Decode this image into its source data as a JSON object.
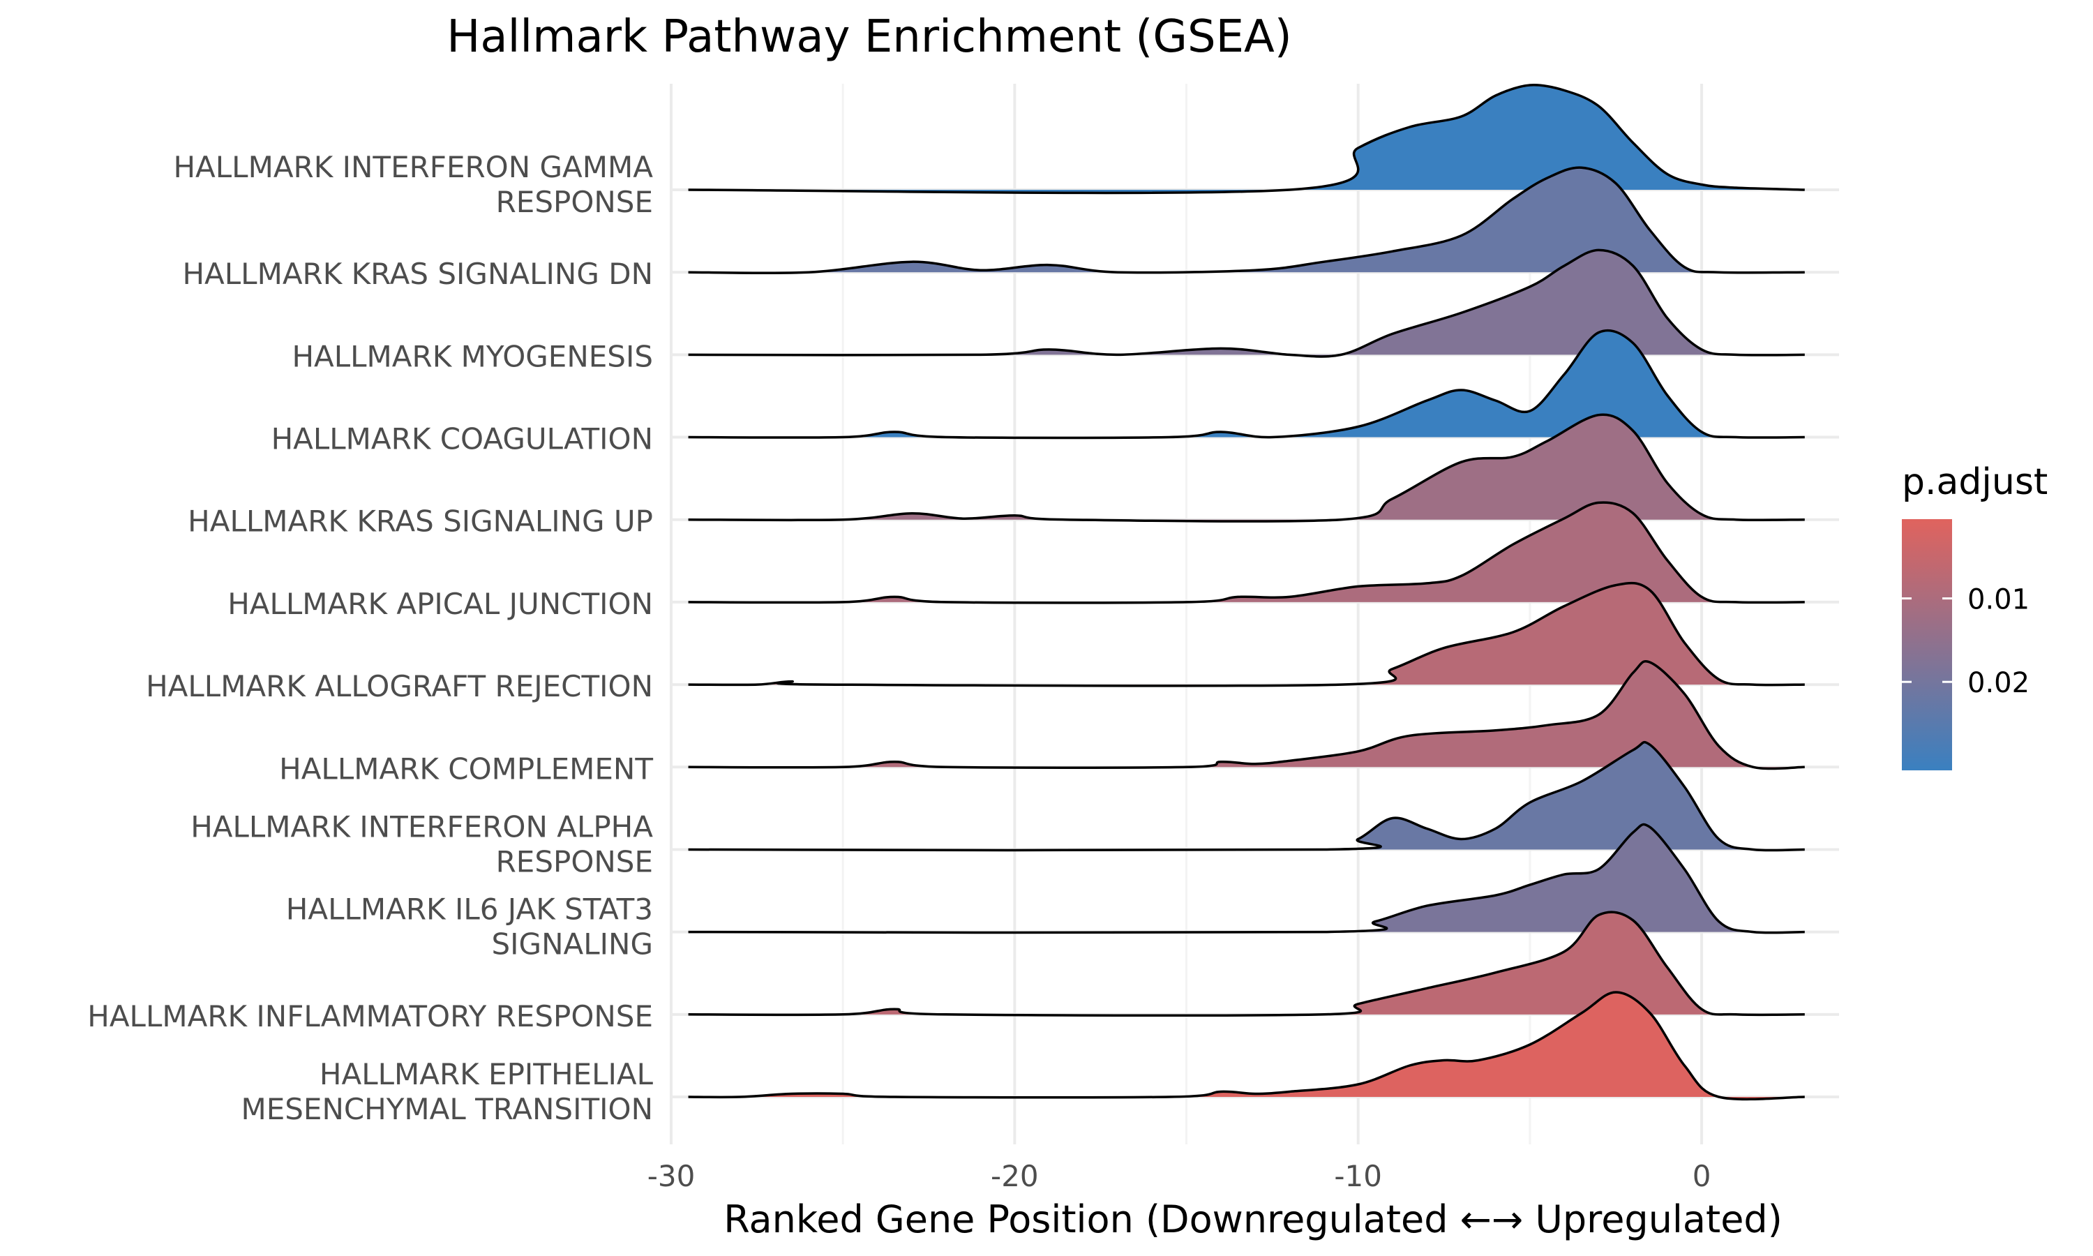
{
  "chart_data": {
    "type": "ridgeline",
    "title": "Hallmark Pathway Enrichment (GSEA)",
    "xlabel": "Ranked Gene Position (Downregulated ←→ Upregulated)",
    "ylabel": "",
    "xlim": [
      -30,
      4
    ],
    "x_ticks": [
      -30,
      -20,
      -10,
      0
    ],
    "x_tick_labels": [
      "-30",
      "-20",
      "-10",
      "0"
    ],
    "density_range": [
      -29.5,
      3
    ],
    "grid": true,
    "legend": {
      "title": "p.adjust",
      "placement": "right",
      "type": "colorbar",
      "range": [
        0.0005,
        0.0306
      ],
      "ticks": [
        0.01,
        0.02
      ],
      "tick_labels": [
        "0.01",
        "0.02"
      ],
      "low_color": "#e0635e",
      "high_color": "#3a80c0"
    },
    "colors": {
      "outline": "#000000",
      "grid": "#ebebeb",
      "tick_text": "#4d4d4d",
      "low_p": "#e0635e",
      "high_p": "#3a80c0"
    },
    "series": [
      {
        "label_lines": [
          "HALLMARK INTERFERON GAMMA",
          "RESPONSE"
        ],
        "p_adjust": 0.0306,
        "points": [
          [
            -29.5,
            0
          ],
          [
            -12,
            0
          ],
          [
            -10,
            0.4
          ],
          [
            -8.5,
            0.6
          ],
          [
            -7,
            0.7
          ],
          [
            -6,
            0.9
          ],
          [
            -5,
            1.0
          ],
          [
            -4,
            0.95
          ],
          [
            -3,
            0.8
          ],
          [
            -2,
            0.45
          ],
          [
            -1,
            0.15
          ],
          [
            0,
            0.05
          ],
          [
            1,
            0.02
          ],
          [
            3,
            0
          ]
        ]
      },
      {
        "label_lines": [
          "HALLMARK KRAS SIGNALING DN"
        ],
        "p_adjust": 0.0222,
        "points": [
          [
            -29.5,
            0
          ],
          [
            -26,
            0
          ],
          [
            -23,
            0.1
          ],
          [
            -21,
            0.02
          ],
          [
            -19,
            0.07
          ],
          [
            -17,
            0
          ],
          [
            -13,
            0.02
          ],
          [
            -11,
            0.1
          ],
          [
            -9,
            0.2
          ],
          [
            -7,
            0.35
          ],
          [
            -5.5,
            0.7
          ],
          [
            -4.5,
            0.9
          ],
          [
            -3.5,
            1.0
          ],
          [
            -2.5,
            0.85
          ],
          [
            -1.5,
            0.4
          ],
          [
            -0.5,
            0.05
          ],
          [
            0.5,
            0
          ],
          [
            3,
            0
          ]
        ]
      },
      {
        "label_lines": [
          "HALLMARK MYOGENESIS"
        ],
        "p_adjust": 0.0178,
        "points": [
          [
            -29.5,
            0
          ],
          [
            -21,
            0
          ],
          [
            -19,
            0.05
          ],
          [
            -17,
            0
          ],
          [
            -14,
            0.06
          ],
          [
            -12,
            0
          ],
          [
            -10.5,
            0
          ],
          [
            -9,
            0.2
          ],
          [
            -7,
            0.4
          ],
          [
            -5,
            0.65
          ],
          [
            -4,
            0.85
          ],
          [
            -3,
            1.0
          ],
          [
            -2,
            0.85
          ],
          [
            -1,
            0.35
          ],
          [
            0,
            0.05
          ],
          [
            1,
            0
          ],
          [
            3,
            0
          ]
        ]
      },
      {
        "label_lines": [
          "HALLMARK COAGULATION"
        ],
        "p_adjust": 0.0308,
        "points": [
          [
            -29.5,
            0
          ],
          [
            -25,
            0
          ],
          [
            -23.5,
            0.05
          ],
          [
            -22,
            0
          ],
          [
            -15.5,
            0
          ],
          [
            -14,
            0.05
          ],
          [
            -12.5,
            0
          ],
          [
            -10,
            0.1
          ],
          [
            -8,
            0.35
          ],
          [
            -7,
            0.45
          ],
          [
            -6,
            0.35
          ],
          [
            -5,
            0.25
          ],
          [
            -4,
            0.6
          ],
          [
            -3,
            1.0
          ],
          [
            -2,
            0.9
          ],
          [
            -1,
            0.4
          ],
          [
            0,
            0.05
          ],
          [
            1,
            0
          ],
          [
            3,
            0
          ]
        ]
      },
      {
        "label_lines": [
          "HALLMARK KRAS SIGNALING UP"
        ],
        "p_adjust": 0.0125,
        "points": [
          [
            -29.5,
            0
          ],
          [
            -25,
            0
          ],
          [
            -23,
            0.06
          ],
          [
            -21.5,
            0.01
          ],
          [
            -20,
            0.04
          ],
          [
            -18.5,
            0
          ],
          [
            -10.5,
            0
          ],
          [
            -9,
            0.2
          ],
          [
            -7,
            0.55
          ],
          [
            -5.5,
            0.6
          ],
          [
            -4.5,
            0.75
          ],
          [
            -3,
            1.0
          ],
          [
            -2,
            0.85
          ],
          [
            -1,
            0.35
          ],
          [
            0,
            0.05
          ],
          [
            1,
            0
          ],
          [
            3,
            0
          ]
        ]
      },
      {
        "label_lines": [
          "HALLMARK APICAL JUNCTION"
        ],
        "p_adjust": 0.01,
        "points": [
          [
            -29.5,
            0
          ],
          [
            -25,
            0
          ],
          [
            -23.5,
            0.05
          ],
          [
            -22,
            0
          ],
          [
            -15,
            0
          ],
          [
            -13.5,
            0.05
          ],
          [
            -12,
            0.05
          ],
          [
            -10,
            0.15
          ],
          [
            -8,
            0.18
          ],
          [
            -7,
            0.25
          ],
          [
            -5.5,
            0.55
          ],
          [
            -4,
            0.8
          ],
          [
            -3,
            0.95
          ],
          [
            -2,
            0.85
          ],
          [
            -1,
            0.4
          ],
          [
            0,
            0.05
          ],
          [
            1,
            0
          ],
          [
            3,
            0
          ]
        ]
      },
      {
        "label_lines": [
          "HALLMARK ALLOGRAFT REJECTION"
        ],
        "p_adjust": 0.008,
        "points": [
          [
            -29.5,
            0
          ],
          [
            -27.5,
            0
          ],
          [
            -26.5,
            0.03
          ],
          [
            -25.5,
            0
          ],
          [
            -10.5,
            0
          ],
          [
            -9,
            0.15
          ],
          [
            -7.5,
            0.35
          ],
          [
            -5.5,
            0.5
          ],
          [
            -4,
            0.75
          ],
          [
            -2.5,
            0.95
          ],
          [
            -1.5,
            0.9
          ],
          [
            -0.5,
            0.4
          ],
          [
            0.5,
            0.05
          ],
          [
            1.5,
            0
          ],
          [
            3,
            0
          ]
        ]
      },
      {
        "label_lines": [
          "HALLMARK COMPLEMENT"
        ],
        "p_adjust": 0.009,
        "points": [
          [
            -29.5,
            0
          ],
          [
            -25,
            0
          ],
          [
            -23.5,
            0.05
          ],
          [
            -22,
            0
          ],
          [
            -15,
            0
          ],
          [
            -14,
            0.05
          ],
          [
            -13,
            0.03
          ],
          [
            -12,
            0.06
          ],
          [
            -10,
            0.15
          ],
          [
            -8.5,
            0.3
          ],
          [
            -6,
            0.35
          ],
          [
            -4.5,
            0.4
          ],
          [
            -3,
            0.5
          ],
          [
            -2,
            0.9
          ],
          [
            -1.5,
            1.0
          ],
          [
            -0.5,
            0.7
          ],
          [
            0.5,
            0.2
          ],
          [
            1.5,
            0
          ],
          [
            3,
            0
          ]
        ]
      },
      {
        "label_lines": [
          "HALLMARK INTERFERON ALPHA",
          "RESPONSE"
        ],
        "p_adjust": 0.022,
        "points": [
          [
            -29.5,
            0
          ],
          [
            -11,
            0
          ],
          [
            -10,
            0.1
          ],
          [
            -9,
            0.3
          ],
          [
            -8,
            0.2
          ],
          [
            -7,
            0.1
          ],
          [
            -6,
            0.2
          ],
          [
            -5,
            0.45
          ],
          [
            -3.5,
            0.65
          ],
          [
            -2,
            0.95
          ],
          [
            -1.5,
            1.0
          ],
          [
            -0.5,
            0.6
          ],
          [
            0.5,
            0.1
          ],
          [
            1.5,
            0
          ],
          [
            3,
            0
          ]
        ]
      },
      {
        "label_lines": [
          "HALLMARK IL6 JAK STAT3",
          "SIGNALING"
        ],
        "p_adjust": 0.019,
        "points": [
          [
            -29.5,
            0
          ],
          [
            -11,
            0
          ],
          [
            -9.5,
            0.1
          ],
          [
            -8,
            0.25
          ],
          [
            -6,
            0.35
          ],
          [
            -5,
            0.45
          ],
          [
            -4,
            0.55
          ],
          [
            -3,
            0.6
          ],
          [
            -2,
            0.95
          ],
          [
            -1.5,
            1.0
          ],
          [
            -0.5,
            0.6
          ],
          [
            0.5,
            0.1
          ],
          [
            1.5,
            0
          ],
          [
            3,
            0
          ]
        ]
      },
      {
        "label_lines": [
          "HALLMARK INFLAMMATORY RESPONSE"
        ],
        "p_adjust": 0.007,
        "points": [
          [
            -29.5,
            0
          ],
          [
            -25,
            0
          ],
          [
            -23.5,
            0.05
          ],
          [
            -22,
            0
          ],
          [
            -11,
            0
          ],
          [
            -10,
            0.1
          ],
          [
            -8,
            0.25
          ],
          [
            -6,
            0.4
          ],
          [
            -4,
            0.6
          ],
          [
            -3,
            0.95
          ],
          [
            -2,
            0.9
          ],
          [
            -1,
            0.45
          ],
          [
            0,
            0.05
          ],
          [
            1,
            0
          ],
          [
            3,
            0
          ]
        ]
      },
      {
        "label_lines": [
          "HALLMARK EPITHELIAL",
          "MESENCHYMAL TRANSITION"
        ],
        "p_adjust": 0.001,
        "points": [
          [
            -29.5,
            0
          ],
          [
            -28,
            0
          ],
          [
            -26.5,
            0.03
          ],
          [
            -25,
            0.03
          ],
          [
            -23.5,
            0
          ],
          [
            -15.5,
            0
          ],
          [
            -14,
            0.05
          ],
          [
            -13,
            0.03
          ],
          [
            -12,
            0.05
          ],
          [
            -10,
            0.12
          ],
          [
            -8.5,
            0.3
          ],
          [
            -7.5,
            0.35
          ],
          [
            -6.5,
            0.35
          ],
          [
            -5,
            0.5
          ],
          [
            -3.5,
            0.8
          ],
          [
            -2.5,
            1.0
          ],
          [
            -1.5,
            0.8
          ],
          [
            -0.5,
            0.3
          ],
          [
            0.5,
            0
          ],
          [
            3,
            0
          ]
        ]
      }
    ]
  }
}
